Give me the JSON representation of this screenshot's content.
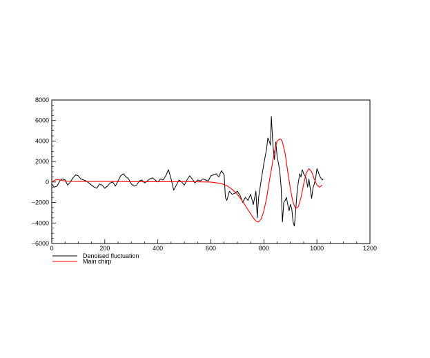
{
  "chart_data": {
    "type": "line",
    "title": "",
    "xlabel": "",
    "ylabel": "",
    "xlim": [
      0,
      1200
    ],
    "ylim": [
      -6000,
      8000
    ],
    "xticks": [
      0,
      200,
      400,
      600,
      800,
      1000,
      1200
    ],
    "yticks": [
      -6000,
      -4000,
      -2000,
      0,
      2000,
      4000,
      6000,
      8000
    ],
    "xtick_labels": [
      "0",
      "200",
      "400",
      "600",
      "800",
      "1000",
      "1200"
    ],
    "ytick_labels": [
      "−6000",
      "−4000",
      "−2000",
      "0",
      "2000",
      "4000",
      "6000",
      "8000"
    ],
    "grid": false,
    "legend_position": "bottom-left, below axes",
    "series": [
      {
        "name": "Denoised fluctuation",
        "color": "#000000",
        "x": [
          0,
          10,
          20,
          30,
          40,
          50,
          60,
          70,
          80,
          90,
          100,
          110,
          120,
          130,
          140,
          150,
          160,
          170,
          180,
          190,
          200,
          210,
          220,
          230,
          240,
          250,
          260,
          270,
          280,
          290,
          300,
          310,
          320,
          330,
          340,
          350,
          360,
          370,
          380,
          390,
          400,
          410,
          420,
          430,
          440,
          450,
          460,
          470,
          480,
          490,
          500,
          510,
          520,
          530,
          540,
          550,
          560,
          570,
          580,
          590,
          600,
          610,
          620,
          630,
          640,
          650,
          655,
          660,
          670,
          680,
          690,
          700,
          710,
          720,
          730,
          740,
          750,
          760,
          770,
          775,
          780,
          790,
          800,
          810,
          815,
          820,
          825,
          828,
          832,
          836,
          840,
          845,
          850,
          855,
          860,
          865,
          870,
          875,
          880,
          885,
          890,
          895,
          900,
          905,
          910,
          915,
          920,
          925,
          930,
          935,
          940,
          945,
          950,
          955,
          960,
          965,
          970,
          975,
          980,
          985,
          990,
          995,
          1000,
          1005,
          1010,
          1015,
          1020,
          1024
        ],
        "y": [
          -200,
          -500,
          -400,
          100,
          300,
          200,
          -300,
          0,
          400,
          700,
          600,
          300,
          200,
          100,
          -100,
          -300,
          -500,
          -600,
          -200,
          -300,
          -600,
          -400,
          -100,
          0,
          -400,
          100,
          600,
          800,
          500,
          300,
          -200,
          -400,
          -300,
          100,
          200,
          -100,
          100,
          300,
          400,
          200,
          0,
          300,
          200,
          600,
          1200,
          300,
          -800,
          -300,
          200,
          0,
          -300,
          200,
          600,
          300,
          -100,
          200,
          100,
          300,
          200,
          100,
          600,
          700,
          800,
          500,
          1100,
          700,
          -1500,
          -1800,
          -900,
          -1200,
          -1100,
          -900,
          -1300,
          -2000,
          -1500,
          -1800,
          -1200,
          -2200,
          -900,
          -3500,
          -1500,
          200,
          1800,
          3200,
          4300,
          4000,
          3600,
          6400,
          4500,
          3000,
          2200,
          3900,
          2500,
          1800,
          1000,
          -500,
          -3900,
          -2000,
          -1800,
          -1500,
          -2200,
          -2800,
          -2200,
          -2600,
          -3900,
          -4300,
          -2800,
          -1000,
          0,
          800,
          500,
          1200,
          800,
          600,
          300,
          -500,
          300,
          -700,
          -1600,
          -600,
          -200,
          300,
          1300,
          1000,
          600,
          400,
          200,
          300
        ]
      },
      {
        "name": "Main chirp",
        "color": "#ff0000",
        "x": [
          0,
          10,
          20,
          30,
          40,
          50,
          60,
          80,
          100,
          150,
          200,
          300,
          400,
          500,
          600,
          640,
          660,
          680,
          700,
          720,
          740,
          760,
          770,
          780,
          790,
          800,
          810,
          820,
          830,
          840,
          850,
          860,
          865,
          870,
          880,
          890,
          900,
          910,
          920,
          930,
          940,
          950,
          960,
          970,
          980,
          990,
          1000,
          1010,
          1020
        ],
        "y": [
          0,
          150,
          250,
          200,
          150,
          100,
          80,
          60,
          50,
          50,
          50,
          40,
          30,
          40,
          0,
          -150,
          -350,
          -700,
          -1200,
          -1900,
          -2700,
          -3500,
          -3800,
          -3900,
          -3600,
          -2800,
          -1600,
          0,
          1500,
          3000,
          4000,
          4200,
          4150,
          3900,
          2800,
          1000,
          -700,
          -2000,
          -2600,
          -2400,
          -1500,
          -200,
          900,
          1300,
          1000,
          300,
          -300,
          -500,
          -300
        ]
      }
    ]
  }
}
